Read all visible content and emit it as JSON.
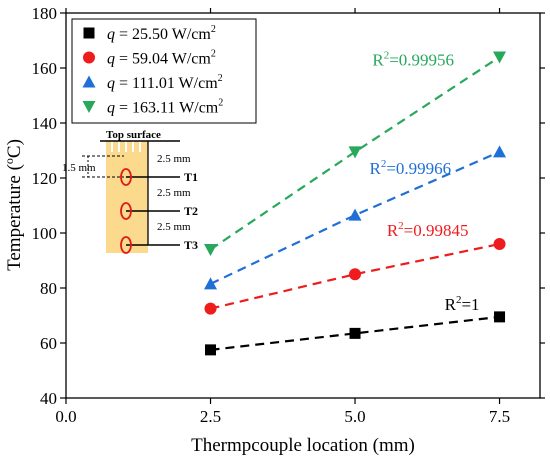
{
  "chart_data": {
    "type": "scatter",
    "xlabel": "Thermpcouple location (mm)",
    "ylabel_main": "Temperature (",
    "ylabel_sup": "o",
    "ylabel_end": "C)",
    "xlim": [
      0.0,
      8.2
    ],
    "ylim": [
      40,
      180
    ],
    "xticks": [
      0.0,
      2.5,
      5.0,
      7.5
    ],
    "xtick_labels": [
      "0.0",
      "2.5",
      "5.0",
      "7.5"
    ],
    "yticks": [
      40,
      60,
      80,
      100,
      120,
      140,
      160,
      180
    ],
    "ytick_labels": [
      "40",
      "60",
      "80",
      "100",
      "120",
      "140",
      "160",
      "180"
    ],
    "grid": false,
    "legend_position": "top-left",
    "x": [
      2.5,
      5.0,
      7.5
    ],
    "series": [
      {
        "name_var": "q",
        "name_rest": " = 25.50 W/cm",
        "name_sup": "2",
        "marker": "square",
        "color": "#000000",
        "values": [
          57.5,
          63.5,
          69.5
        ],
        "r2_label": "=1",
        "r2_pos": [
          6.55,
          72
        ]
      },
      {
        "name_var": "q",
        "name_rest": " = 59.04 W/cm",
        "name_sup": "2",
        "marker": "circle",
        "color": "#ee1c1c",
        "values": [
          72.5,
          85.0,
          96.0
        ],
        "r2_label": "=0.99845",
        "r2_pos": [
          5.55,
          99
        ]
      },
      {
        "name_var": "q",
        "name_rest": " = 111.01 W/cm",
        "name_sup": "2",
        "marker": "triangle-up",
        "color": "#1f6fd6",
        "values": [
          81.5,
          106.5,
          129.5
        ],
        "r2_label": "=0.99966",
        "r2_pos": [
          5.25,
          121.5
        ]
      },
      {
        "name_var": "q",
        "name_rest": " = 163.11 W/cm",
        "name_sup": "2",
        "marker": "triangle-down",
        "color": "#27a85a",
        "values": [
          94.0,
          129.5,
          164.0
        ],
        "r2_label": "=0.99956",
        "r2_pos": [
          5.3,
          161
        ]
      }
    ],
    "r2_prefix": "R",
    "r2_sup": "2"
  },
  "inset": {
    "top_label": "Top surface",
    "spacing_1": "2.5 mm",
    "spacing_2": "2.5 mm",
    "spacing_3": "2.5 mm",
    "depth_label": "1.5 mm",
    "t1": "T1",
    "t2": "T2",
    "t3": "T3",
    "block_color": "#fbd98d"
  }
}
